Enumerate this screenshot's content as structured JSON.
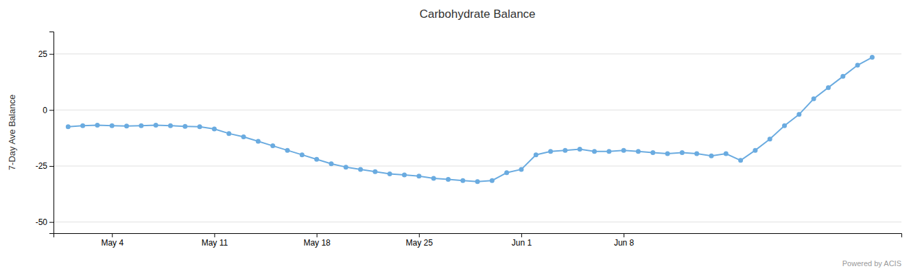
{
  "chart_data": {
    "type": "line",
    "title": "Carbohydrate Balance",
    "y_label": "7-Day Ave Balance",
    "x": [
      0,
      1,
      2,
      3,
      4,
      5,
      6,
      7,
      8,
      9,
      10,
      11,
      12,
      13,
      14,
      15,
      16,
      17,
      18,
      19,
      20,
      21,
      22,
      23,
      24,
      25,
      26,
      27,
      28,
      29,
      30,
      31,
      32,
      33,
      34,
      35,
      36,
      37,
      38,
      39,
      40,
      41,
      42,
      43,
      44,
      45,
      46,
      47,
      48,
      49,
      50,
      51,
      52,
      53,
      54,
      55
    ],
    "values": [
      -7.5,
      -7.0,
      -6.8,
      -7.0,
      -7.2,
      -7.0,
      -6.8,
      -7.0,
      -7.3,
      -7.5,
      -8.5,
      -10.5,
      -12.0,
      -14.0,
      -16.0,
      -18.0,
      -20.0,
      -22.0,
      -24.0,
      -25.5,
      -26.5,
      -27.5,
      -28.5,
      -29.0,
      -29.5,
      -30.5,
      -31.0,
      -31.5,
      -32.0,
      -31.5,
      -28.0,
      -26.5,
      -20.0,
      -18.5,
      -18.0,
      -17.5,
      -18.5,
      -18.5,
      -18.0,
      -18.5,
      -19.0,
      -19.5,
      -19.0,
      -19.5,
      -20.5,
      -19.5,
      -22.5,
      -18.0,
      -13.0,
      -7.0,
      -2.0,
      5.0,
      10.0,
      15.0,
      20.0,
      23.5
    ],
    "color": "#6aabe0",
    "marker": "circle",
    "line_style": "solid",
    "xlim": [
      -1,
      57
    ],
    "xticks": [
      {
        "value": 3,
        "label": "May 4"
      },
      {
        "value": 10,
        "label": "May 11"
      },
      {
        "value": 17,
        "label": "May 18"
      },
      {
        "value": 24,
        "label": "May 25"
      },
      {
        "value": 31,
        "label": "Jun 1"
      },
      {
        "value": 38,
        "label": "Jun 8"
      }
    ],
    "ylim": [
      -55,
      35
    ],
    "yticks": [
      -50,
      -25,
      0,
      25
    ],
    "grid": true,
    "annotations": [
      {
        "text": "Powered by ACIS"
      }
    ]
  }
}
